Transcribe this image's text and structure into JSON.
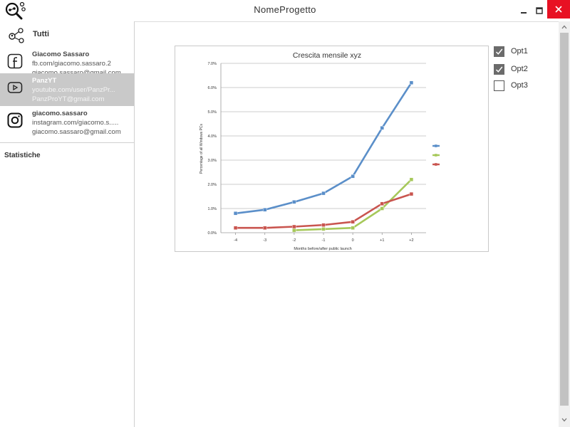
{
  "window": {
    "title": "NomeProgetto",
    "minimize_icon": "minimize-icon",
    "maximize_icon": "maximize-icon",
    "close_icon": "close-icon",
    "close_color": "#e81123"
  },
  "sidebar": {
    "all_label": "Tutti",
    "accounts": [
      {
        "icon": "facebook-icon",
        "name": "Giacomo Sassaro",
        "url": "fb.com/giacomo.sassaro.2",
        "email": "giacomo.sassaro@gmail.com",
        "selected": false
      },
      {
        "icon": "youtube-icon",
        "name": "PanzYT",
        "url": "youtube.com/user/PanzPr...",
        "email": "PanzProYT@gmail.com",
        "selected": true
      },
      {
        "icon": "instagram-icon",
        "name": "giacomo.sassaro",
        "url": "instagram.com/giacomo.s.....",
        "email": "giacomo.sassaro@gmail.com",
        "selected": false
      }
    ],
    "stats_label": "Statistiche",
    "selected_color": "#c9c9c9"
  },
  "options": [
    {
      "label": "Opt1",
      "checked": true
    },
    {
      "label": "Opt2",
      "checked": true
    },
    {
      "label": "Opt3",
      "checked": false
    }
  ],
  "chart_data": {
    "type": "line",
    "title": "Crescita mensile xyz",
    "xlabel": "Months before/after public launch",
    "ylabel": "Percentage of all Windows PCs",
    "categories": [
      "-4",
      "-3",
      "-2",
      "-1",
      "0",
      "+1",
      "+2"
    ],
    "y_ticks": [
      "0.0%",
      "1.0%",
      "2.0%",
      "3.0%",
      "4.0%",
      "5.0%",
      "6.0%",
      "7.0%"
    ],
    "ylim": [
      0,
      7
    ],
    "grid": true,
    "legend": "right",
    "series": [
      {
        "color": "#5b8fc9",
        "values": [
          0.8,
          0.95,
          1.27,
          1.63,
          2.33,
          4.33,
          6.2
        ]
      },
      {
        "color": "#a6c85a",
        "values": [
          null,
          null,
          0.1,
          0.15,
          0.2,
          1.0,
          2.2
        ]
      },
      {
        "color": "#c9554f",
        "values": [
          0.2,
          0.2,
          0.25,
          0.32,
          0.45,
          1.2,
          1.6
        ]
      }
    ]
  }
}
